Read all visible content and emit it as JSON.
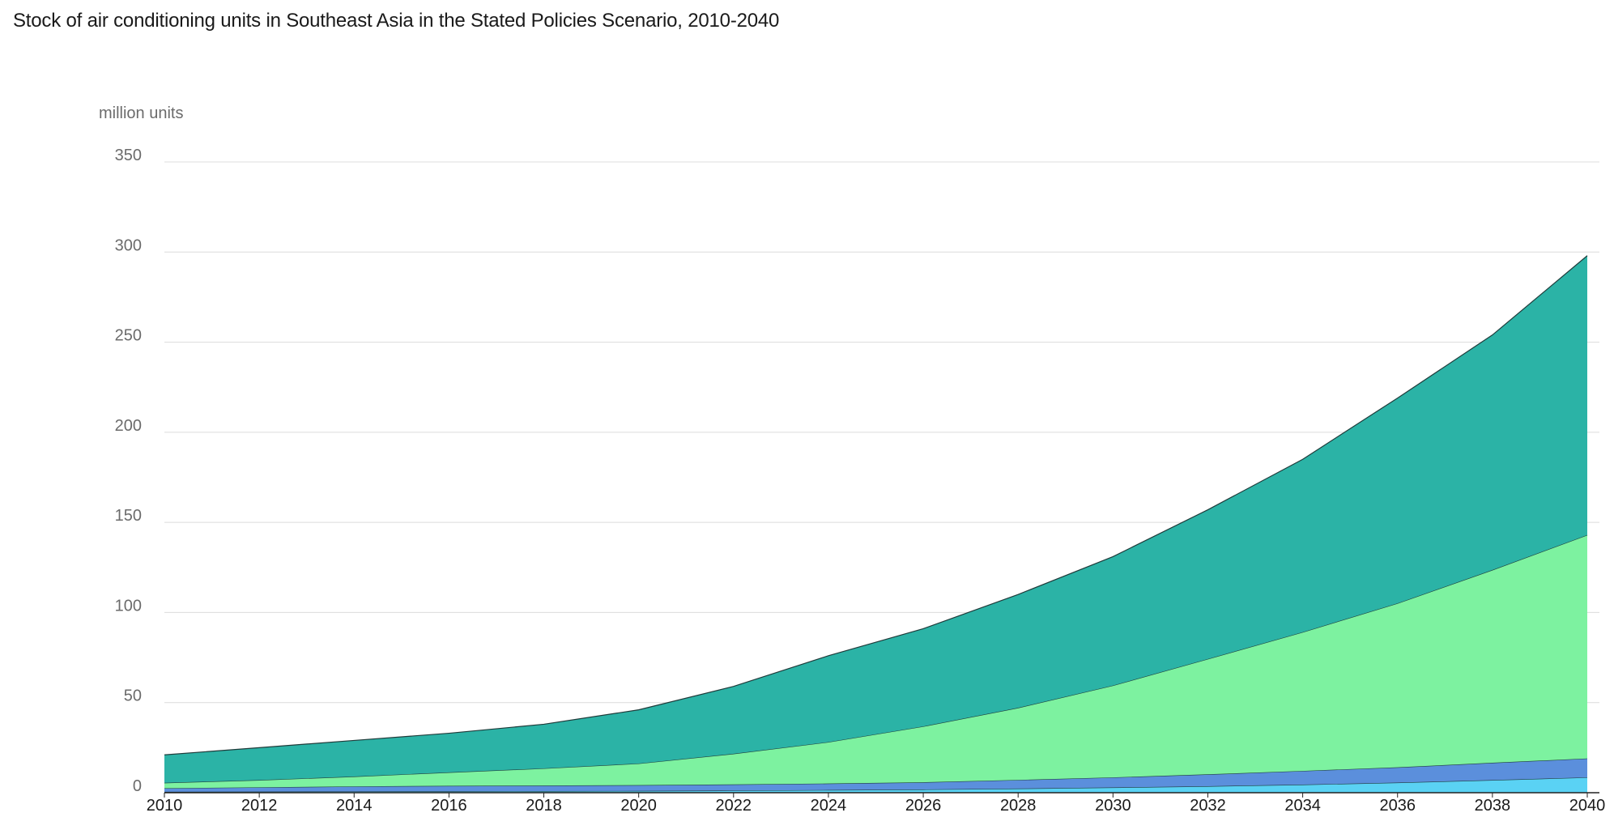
{
  "chart_data": {
    "type": "area",
    "stacked": true,
    "title": "Stock of air conditioning units in Southeast Asia in the Stated Policies Scenario, 2010-2040",
    "ylabel": "million units",
    "xlabel": "",
    "ylim": [
      0,
      350
    ],
    "yticks": [
      0,
      50,
      100,
      150,
      200,
      250,
      300,
      350
    ],
    "xlim": [
      2010,
      2040
    ],
    "xticks": [
      2010,
      2012,
      2014,
      2016,
      2018,
      2020,
      2022,
      2024,
      2026,
      2028,
      2030,
      2032,
      2034,
      2036,
      2038,
      2040
    ],
    "x": [
      2010,
      2012,
      2014,
      2016,
      2018,
      2020,
      2022,
      2024,
      2026,
      2028,
      2030,
      2032,
      2034,
      2036,
      2038,
      2040
    ],
    "grid": true,
    "legend": "none",
    "series": [
      {
        "color": "#5ad2f4",
        "values": [
          0.5,
          0.6,
          0.7,
          0.8,
          0.9,
          1.0,
          1.2,
          1.5,
          1.8,
          2.3,
          2.9,
          3.6,
          4.5,
          5.6,
          7.0,
          8.5
        ]
      },
      {
        "color": "#5b8fdc",
        "values": [
          2.0,
          2.4,
          2.8,
          3.0,
          3.1,
          3.2,
          3.4,
          3.6,
          4.0,
          4.8,
          5.6,
          6.6,
          7.6,
          8.5,
          9.6,
          10.5
        ]
      },
      {
        "color": "#7df2a0",
        "values": [
          3.0,
          4.0,
          5.5,
          7.5,
          9.5,
          12.0,
          17.0,
          23.0,
          31.0,
          40.0,
          51.0,
          64.0,
          77.0,
          91.0,
          107.0,
          124.0
        ]
      },
      {
        "color": "#2bb3a6",
        "values": [
          15.5,
          18.0,
          20.0,
          21.7,
          24.5,
          29.8,
          37.4,
          47.9,
          54.2,
          62.9,
          71.5,
          82.8,
          95.9,
          113.9,
          130.4,
          155.0
        ]
      }
    ]
  }
}
